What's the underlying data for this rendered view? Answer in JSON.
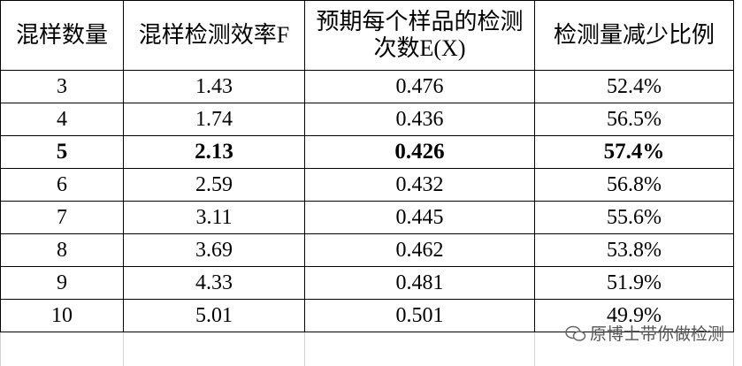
{
  "table": {
    "header": [
      "混样数量",
      "混样检测效率F",
      "预期每个样品的检测次数E(X)",
      "检测量减少比例"
    ],
    "rows": [
      [
        "3",
        "1.43",
        "0.476",
        "52.4%"
      ],
      [
        "4",
        "1.74",
        "0.436",
        "56.5%"
      ],
      [
        "5",
        "2.13",
        "0.426",
        "57.4%"
      ],
      [
        "6",
        "2.59",
        "0.432",
        "56.8%"
      ],
      [
        "7",
        "3.11",
        "0.445",
        "55.6%"
      ],
      [
        "8",
        "3.69",
        "0.462",
        "53.8%"
      ],
      [
        "9",
        "4.33",
        "0.481",
        "51.9%"
      ],
      [
        "10",
        "5.01",
        "0.501",
        "49.9%"
      ]
    ],
    "bold_row": 2
  },
  "watermark": "原博士带你做检测"
}
